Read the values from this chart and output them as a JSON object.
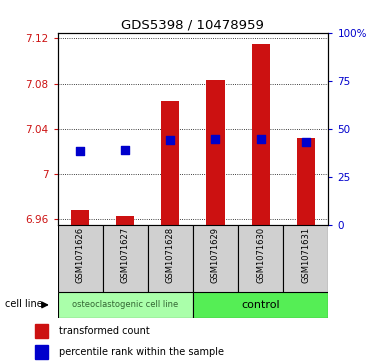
{
  "title": "GDS5398 / 10478959",
  "samples": [
    "GSM1071626",
    "GSM1071627",
    "GSM1071628",
    "GSM1071629",
    "GSM1071630",
    "GSM1071631"
  ],
  "transformed_counts": [
    6.968,
    6.963,
    7.065,
    7.083,
    7.115,
    7.032
  ],
  "percentile_ranks": [
    7.02,
    7.021,
    7.03,
    7.031,
    7.031,
    7.028
  ],
  "ylim_min": 6.955,
  "ylim_max": 7.125,
  "yticks": [
    6.96,
    7.0,
    7.04,
    7.08,
    7.12
  ],
  "ytick_labels": [
    "6.96",
    "7",
    "7.04",
    "7.08",
    "7.12"
  ],
  "right_ytick_percents": [
    0,
    25,
    50,
    75,
    100
  ],
  "right_ytick_labels": [
    "0",
    "25",
    "50",
    "75",
    "100%"
  ],
  "bar_color": "#cc1111",
  "dot_color": "#0000cc",
  "left_tick_color": "#cc1111",
  "right_tick_color": "#0000cc",
  "group1_label": "osteoclastogenic cell line",
  "group2_label": "control",
  "group1_color": "#aaffaa",
  "group2_color": "#55ee55",
  "cell_line_label": "cell line",
  "bar_base": 6.955,
  "dot_size": 28,
  "bar_width": 0.4
}
